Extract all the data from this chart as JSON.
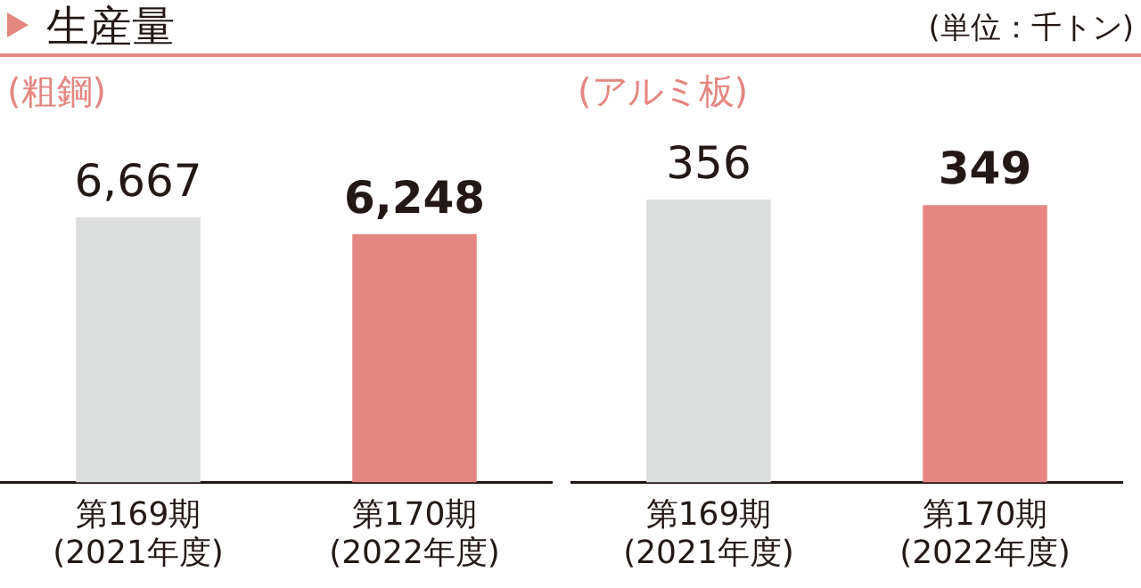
{
  "chart_data": [
    {
      "type": "bar",
      "title": "生産量",
      "subtitle": "(粗鋼)",
      "annotations": [
        "(単位：千トン)"
      ],
      "categories": [
        "第169期\n(2021年度)",
        "第170期\n(2022年度)"
      ],
      "values": [
        6667,
        6248
      ],
      "colors": [
        "#dcdedd",
        "#e58680"
      ],
      "value_labels": [
        "6,667",
        "6,248"
      ],
      "tick_labels": "x",
      "grid": false,
      "legend": false
    },
    {
      "type": "bar",
      "subtitle": "(アルミ板)",
      "categories": [
        "第169期\n(2021年度)",
        "第170期\n(2022年度)"
      ],
      "values": [
        356,
        349
      ],
      "colors": [
        "#dcdedd",
        "#e58680"
      ],
      "data_labels": true,
      "tick_labels": "x",
      "grid": false,
      "legend": false
    }
  ]
}
